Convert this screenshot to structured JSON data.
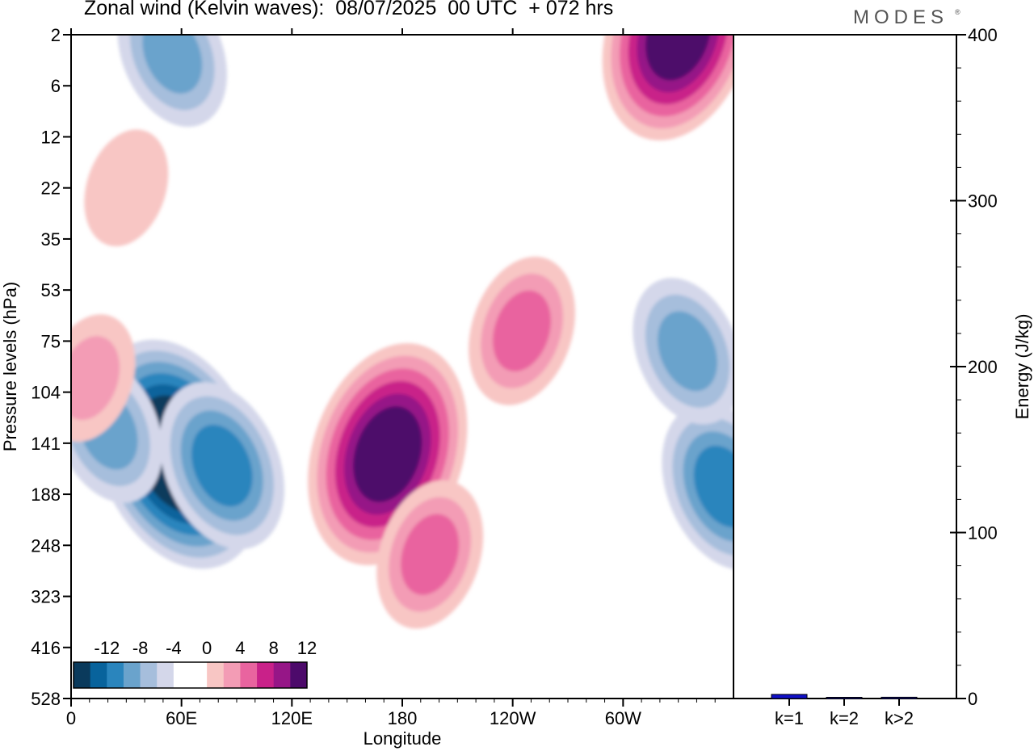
{
  "header": {
    "title": "Zonal wind (Kelvin waves):  08/07/2025  00 UTC  + 072 hrs",
    "brand": "MODES",
    "brand_mark": "®"
  },
  "chart_data": [
    {
      "type": "heatmap",
      "title": "Zonal wind (Kelvin waves):  08/07/2025  00 UTC  + 072 hrs",
      "xlabel": "Longitude",
      "ylabel": "Pressure levels (hPa)",
      "x_ticks": [
        "0",
        "60E",
        "120E",
        "180",
        "120W",
        "60W"
      ],
      "x_tick_degrees": [
        0,
        60,
        120,
        180,
        240,
        300
      ],
      "xlim": [
        0,
        360
      ],
      "y_ticks": [
        "2",
        "6",
        "12",
        "22",
        "35",
        "53",
        "75",
        "104",
        "141",
        "188",
        "248",
        "323",
        "416",
        "528"
      ],
      "y_inverted": true,
      "colorbar": {
        "tick_labels": [
          "-12",
          "-8",
          "-4",
          "0",
          "4",
          "8",
          "12"
        ],
        "levels": [
          -14,
          -12,
          -10,
          -8,
          -6,
          -4,
          -2,
          0,
          2,
          4,
          6,
          8,
          10,
          12,
          14
        ],
        "colors": [
          "#0a3a5c",
          "#08639c",
          "#2a85bd",
          "#6aa3cc",
          "#a6bedc",
          "#d4d7ea",
          "#ffffff",
          "#ffffff",
          "#f8c6c4",
          "#f39cb5",
          "#e9649f",
          "#c92189",
          "#961687",
          "#4d0a6b"
        ],
        "placement": "bottom-left inside"
      },
      "features": [
        {
          "sign": "negative",
          "lon": 58,
          "hPa": 150,
          "peak": -14
        },
        {
          "sign": "negative",
          "lon": 82,
          "hPa": 160,
          "peak": -8
        },
        {
          "sign": "negative",
          "lon": 20,
          "hPa": 130,
          "peak": -6
        },
        {
          "sign": "negative",
          "lon": 355,
          "hPa": 180,
          "peak": -8
        },
        {
          "sign": "negative",
          "lon": 335,
          "hPa": 80,
          "peak": -6
        },
        {
          "sign": "negative",
          "lon": 55,
          "hPa": 3,
          "peak": -6
        },
        {
          "sign": "positive",
          "lon": 172,
          "hPa": 150,
          "peak": 13
        },
        {
          "sign": "positive",
          "lon": 195,
          "hPa": 260,
          "peak": 6
        },
        {
          "sign": "positive",
          "lon": 245,
          "hPa": 70,
          "peak": 6
        },
        {
          "sign": "positive",
          "lon": 330,
          "hPa": 2,
          "peak": 12
        },
        {
          "sign": "positive",
          "lon": 10,
          "hPa": 95,
          "peak": 4
        },
        {
          "sign": "positive",
          "lon": 30,
          "hPa": 22,
          "peak": 3
        }
      ]
    },
    {
      "type": "bar",
      "categories": [
        "k=1",
        "k=2",
        "k>2"
      ],
      "values": [
        2.5,
        0.4,
        0.8
      ],
      "ylabel": "Energy (J/kg)",
      "ylim": [
        0,
        400
      ],
      "y_ticks": [
        0,
        100,
        200,
        300,
        400
      ],
      "bar_color": "#1010c8"
    }
  ]
}
